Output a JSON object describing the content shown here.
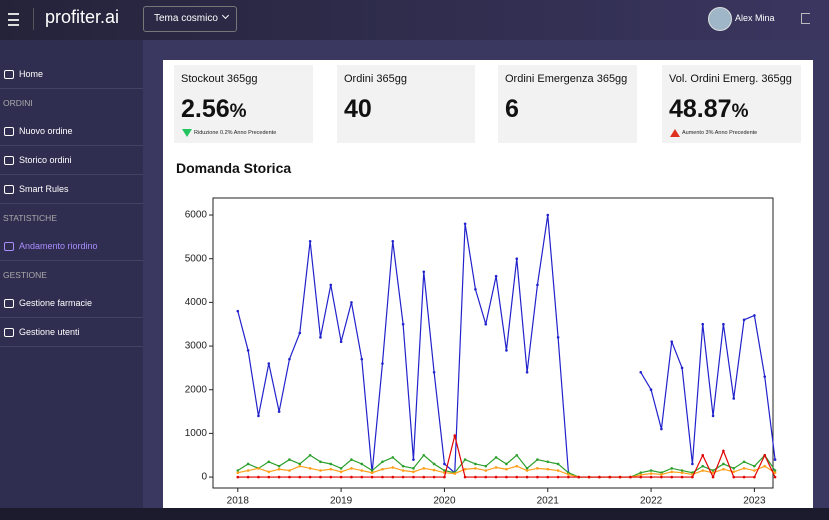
{
  "header": {
    "brand": "profiter.ai",
    "theme": "Tema cosmico",
    "user": "Alex Mina"
  },
  "sidebar": {
    "items": [
      {
        "label": "Home",
        "kind": "item"
      },
      {
        "label": "ORDINI",
        "kind": "section"
      },
      {
        "label": "Nuovo ordine",
        "kind": "item"
      },
      {
        "label": "Storico ordini",
        "kind": "item"
      },
      {
        "label": "Smart Rules",
        "kind": "item"
      },
      {
        "label": "STATISTICHE",
        "kind": "section"
      },
      {
        "label": "Andamento riordino",
        "kind": "active"
      },
      {
        "label": "GESTIONE",
        "kind": "section"
      },
      {
        "label": "Gestione farmacie",
        "kind": "item"
      },
      {
        "label": "Gestione utenti",
        "kind": "item"
      }
    ]
  },
  "cards": [
    {
      "title": "Stockout 365gg",
      "value": "2.56",
      "unit": "%",
      "note": "Riduzione 0.2% Anno Precedente",
      "trend": "down"
    },
    {
      "title": "Ordini 365gg",
      "value": "40"
    },
    {
      "title": "Ordini Emergenza 365gg",
      "value": "6"
    },
    {
      "title": "Vol. Ordini Emerg. 365gg",
      "value": "48.87",
      "unit": "%",
      "note": "Aumento 3% Anno Precedente",
      "trend": "up"
    }
  ],
  "chart_data": {
    "type": "line",
    "title": "Domanda Storica",
    "x": [
      2018.0,
      2018.1,
      2018.2,
      2018.3,
      2018.4,
      2018.5,
      2018.6,
      2018.7,
      2018.8,
      2018.9,
      2019.0,
      2019.1,
      2019.2,
      2019.3,
      2019.4,
      2019.5,
      2019.6,
      2019.7,
      2019.8,
      2019.9,
      2020.0,
      2020.1,
      2020.2,
      2020.3,
      2020.4,
      2020.5,
      2020.6,
      2020.7,
      2020.8,
      2020.9,
      2021.0,
      2021.1,
      2021.2,
      2021.3,
      2021.4,
      2021.5,
      2021.6,
      2021.7,
      2021.8,
      2021.9,
      2022.0,
      2022.1,
      2022.2,
      2022.3,
      2022.4,
      2022.5,
      2022.6,
      2022.7,
      2022.8,
      2022.9,
      2023.0,
      2023.1,
      2023.2
    ],
    "series": [
      {
        "color": "#2222cc",
        "values": [
          3800,
          2900,
          1400,
          2600,
          1500,
          2700,
          3300,
          5400,
          3200,
          4400,
          3100,
          4000,
          2700,
          100,
          2600,
          5400,
          3500,
          400,
          4700,
          2400,
          300,
          100,
          5800,
          4300,
          3500,
          4600,
          2900,
          5000,
          2400,
          4400,
          6000,
          3200,
          100,
          null,
          null,
          null,
          null,
          null,
          null,
          2400,
          2000,
          1100,
          3100,
          2500,
          300,
          3500,
          1400,
          3500,
          1800,
          3600,
          3700,
          2300,
          400
        ]
      },
      {
        "color": "#2ca02c",
        "values": [
          150,
          300,
          200,
          350,
          250,
          400,
          300,
          500,
          350,
          300,
          200,
          400,
          300,
          150,
          350,
          450,
          250,
          200,
          500,
          300,
          150,
          100,
          400,
          300,
          250,
          450,
          300,
          500,
          200,
          400,
          350,
          300,
          100,
          0,
          0,
          0,
          0,
          0,
          0,
          100,
          150,
          100,
          200,
          150,
          100,
          250,
          150,
          300,
          200,
          350,
          250,
          500,
          150
        ]
      },
      {
        "color": "#ff9f1c",
        "values": [
          100,
          150,
          200,
          120,
          180,
          150,
          250,
          200,
          150,
          180,
          120,
          200,
          150,
          100,
          180,
          220,
          150,
          120,
          200,
          160,
          100,
          80,
          180,
          200,
          150,
          220,
          180,
          250,
          150,
          200,
          180,
          150,
          60,
          0,
          0,
          0,
          0,
          0,
          0,
          50,
          80,
          60,
          120,
          100,
          60,
          150,
          100,
          180,
          120,
          200,
          150,
          250,
          100
        ]
      },
      {
        "color": "#e00000",
        "values": [
          0,
          0,
          0,
          0,
          0,
          0,
          0,
          0,
          0,
          0,
          0,
          0,
          0,
          0,
          0,
          0,
          0,
          0,
          0,
          0,
          0,
          950,
          0,
          0,
          0,
          0,
          0,
          0,
          0,
          0,
          0,
          0,
          0,
          0,
          0,
          0,
          0,
          0,
          0,
          0,
          0,
          0,
          0,
          0,
          0,
          500,
          0,
          600,
          0,
          0,
          0,
          500,
          0
        ]
      }
    ],
    "xlim": [
      2017.76,
      2023.18
    ],
    "xticks": [
      2018,
      2019,
      2020,
      2021,
      2022,
      2023
    ],
    "ylim": [
      -250,
      6390
    ],
    "yticks": [
      0,
      1000,
      2000,
      3000,
      4000,
      5000,
      6000
    ]
  }
}
